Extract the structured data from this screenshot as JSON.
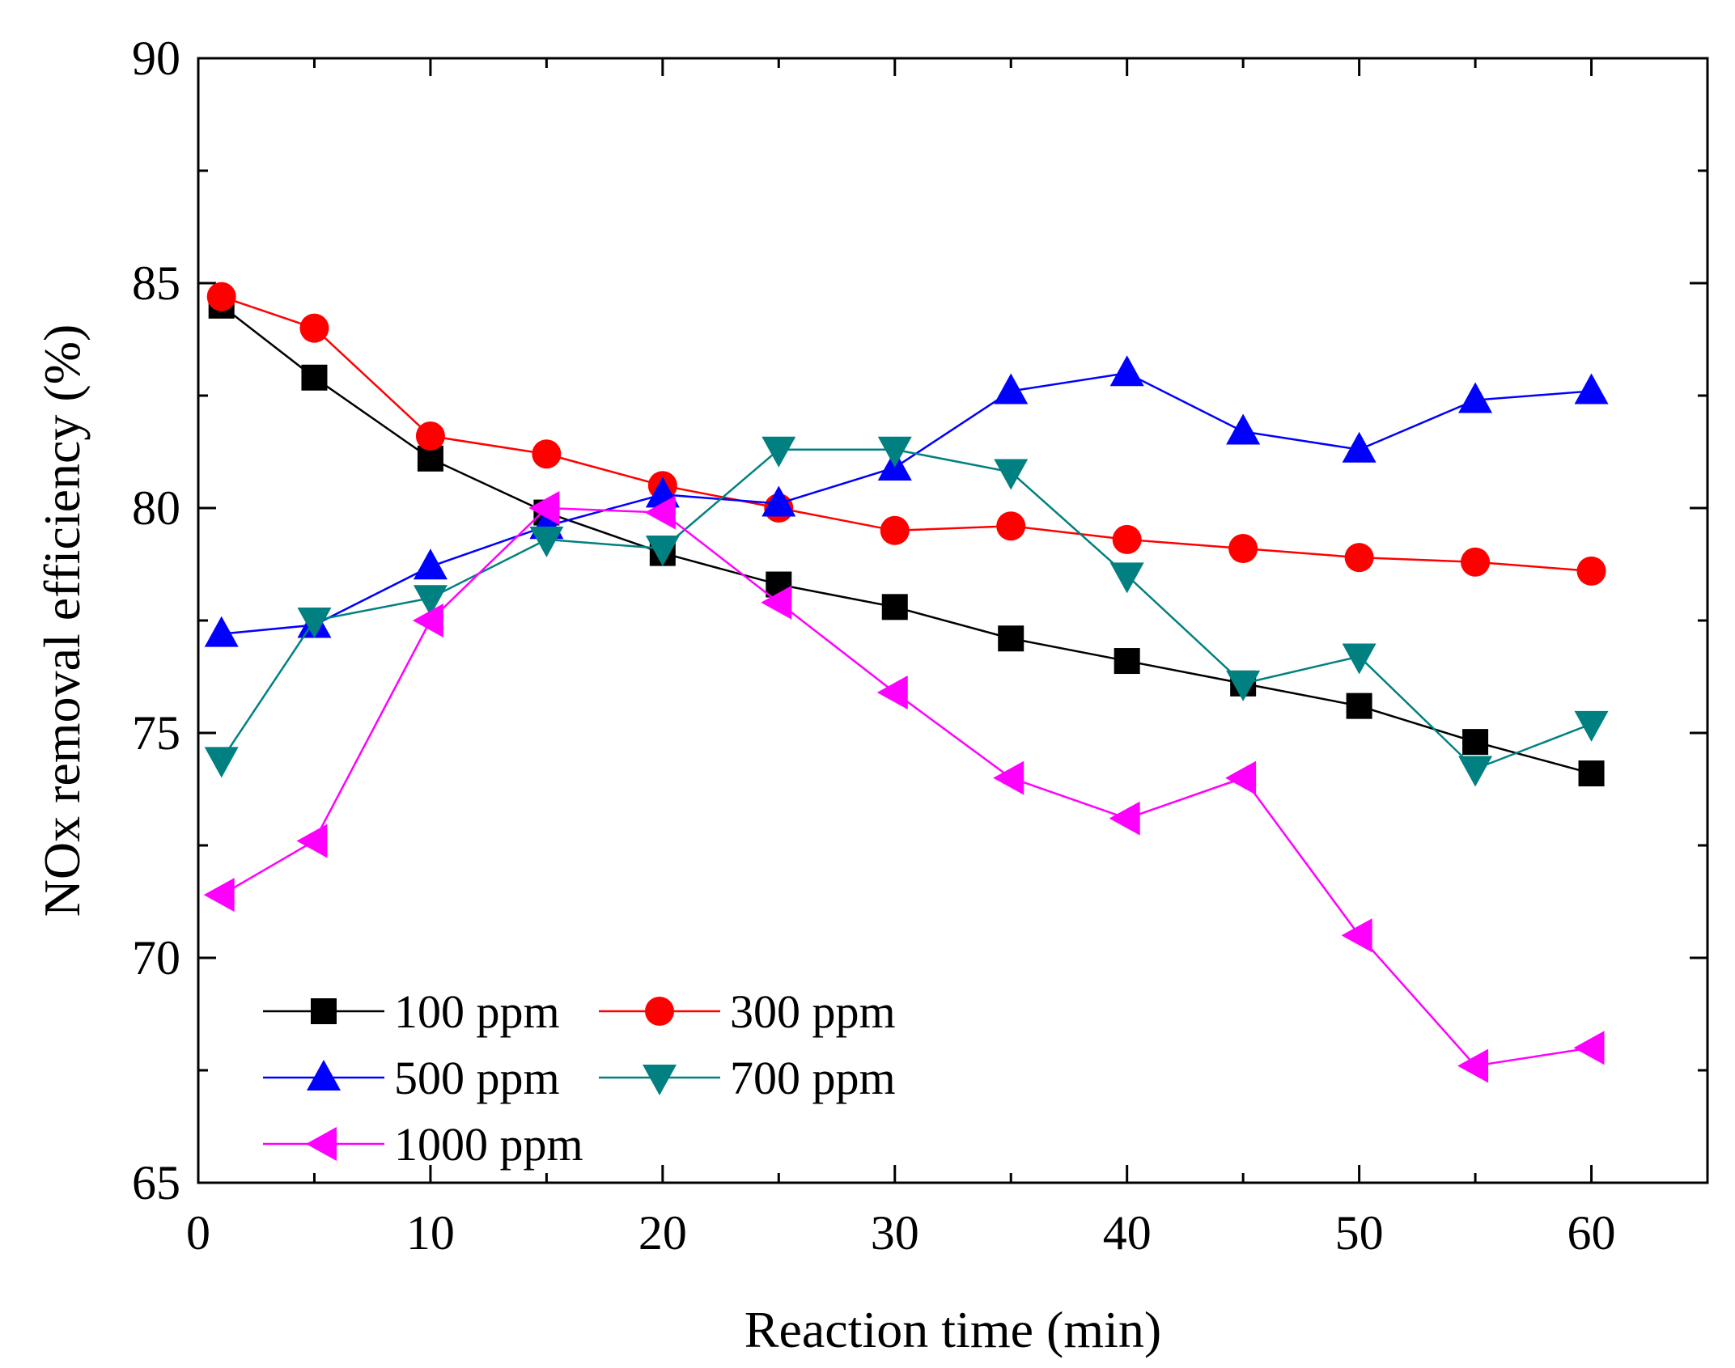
{
  "chart_data": {
    "type": "line",
    "title": "",
    "xlabel": "Reaction time (min)",
    "ylabel": "NOx removal efficiency (%)",
    "xlim": [
      0,
      65
    ],
    "ylim": [
      65,
      90
    ],
    "x": [
      1,
      5,
      10,
      15,
      20,
      25,
      30,
      35,
      40,
      45,
      50,
      55,
      60
    ],
    "x_ticks": [
      0,
      10,
      20,
      30,
      40,
      50,
      60
    ],
    "y_ticks": [
      65,
      70,
      75,
      80,
      85,
      90
    ],
    "grid": false,
    "legend_position": "bottom-left",
    "series": [
      {
        "name": "100 ppm",
        "color": "#000000",
        "marker": "square",
        "values": [
          84.5,
          82.9,
          81.1,
          79.9,
          79.0,
          78.3,
          77.8,
          77.1,
          76.6,
          76.1,
          75.6,
          74.8,
          74.1
        ]
      },
      {
        "name": "300 ppm",
        "color": "#ff0000",
        "marker": "circle",
        "values": [
          84.7,
          84.0,
          81.6,
          81.2,
          80.5,
          80.0,
          79.5,
          79.6,
          79.3,
          79.1,
          78.9,
          78.8,
          78.6
        ]
      },
      {
        "name": "500 ppm",
        "color": "#0000ff",
        "marker": "triangle-up",
        "values": [
          77.2,
          77.4,
          78.7,
          79.6,
          80.3,
          80.1,
          80.9,
          82.6,
          83.0,
          81.7,
          81.3,
          82.4,
          82.6
        ]
      },
      {
        "name": "700 ppm",
        "color": "#008080",
        "marker": "triangle-down",
        "values": [
          74.4,
          77.5,
          78.0,
          79.3,
          79.1,
          81.3,
          81.3,
          80.8,
          78.5,
          76.1,
          76.7,
          74.2,
          75.2
        ]
      },
      {
        "name": "1000 ppm",
        "color": "#ff00ff",
        "marker": "triangle-left",
        "values": [
          71.4,
          72.6,
          77.5,
          80.0,
          79.9,
          77.9,
          75.9,
          74.0,
          73.1,
          74.0,
          70.5,
          67.6,
          68.0
        ]
      }
    ]
  }
}
